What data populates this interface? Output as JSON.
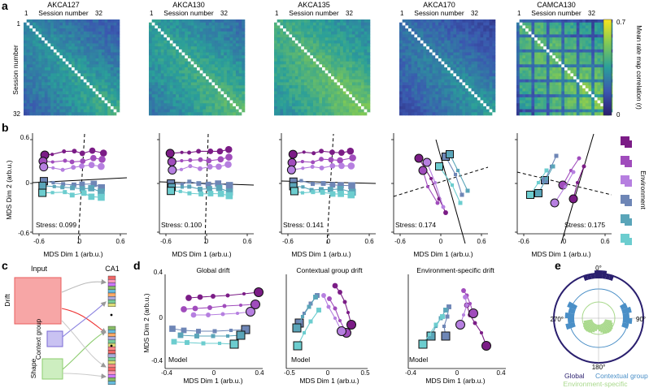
{
  "colors": {
    "env": [
      "#7b1c86",
      "#a04cbc",
      "#b67fe0",
      "#6e86b6",
      "#5aa5b9",
      "#6ccdcf"
    ],
    "global": "#2a1f6e",
    "contextual": "#4a8fc7",
    "envspec": "#a9d98c",
    "drift_box": "#f7a6a6",
    "drift_border": "#e85d5d",
    "ctx_box": "#c9c2f2",
    "ctx_border": "#7a6ad6",
    "shape_box": "#cdeec0",
    "shape_border": "#8ccc6e"
  },
  "panel_letters": {
    "a": "a",
    "b": "b",
    "c": "c",
    "d": "d",
    "e": "e"
  },
  "panel_a": {
    "titles": [
      "AKCA127",
      "AKCA130",
      "AKCA135",
      "AKCA170",
      "CAMCA130"
    ],
    "session_label": "Session number",
    "tick_min": "1",
    "tick_max": "32",
    "colorbar_label": "Mean rate map correlation (r)",
    "colorbar_max": "0.7",
    "colorbar_min": "0",
    "base_levels": [
      0.25,
      0.32,
      0.4,
      0.22,
      0.4
    ]
  },
  "panel_b": {
    "ylabel": "MDS Dim 2 (arb.u.)",
    "xlabel": "MDS Dim 1 (arb.u.)",
    "yticks": [
      "0.6",
      "0",
      "-0.6"
    ],
    "xticks": [
      "-0.6",
      "0",
      "0.6"
    ],
    "stress": [
      "Stress: 0.099",
      "Stress: 0.100",
      "Stress: 0.141",
      "Stress: 0.174",
      "Stress: 0.175"
    ],
    "env_label": "Environment"
  },
  "panel_c": {
    "input": "Input",
    "ca1": "CA1",
    "drift": "Drift",
    "context": "Context group",
    "shape": "Shape"
  },
  "panel_d": {
    "titles": [
      "Global drift",
      "Contextual group drift",
      "Environment-specific drift"
    ],
    "ylabel": "MDS Dim 2 (arb.u.)",
    "xlabel": "MDS Dim 1 (arb.u.)",
    "model": "Model",
    "xticks": [
      [
        "-0.4",
        "0",
        "0.4"
      ],
      [
        "-0.5",
        "0",
        "0.5"
      ],
      [
        "-0.4",
        "0",
        "0.4"
      ]
    ],
    "yticks": [
      "0.4",
      "0",
      "-0.4"
    ]
  },
  "panel_e": {
    "angles": [
      "0°",
      "90°",
      "180°",
      "270°"
    ],
    "legend": [
      "Global",
      "Contextual group",
      "Environment-specific"
    ]
  }
}
